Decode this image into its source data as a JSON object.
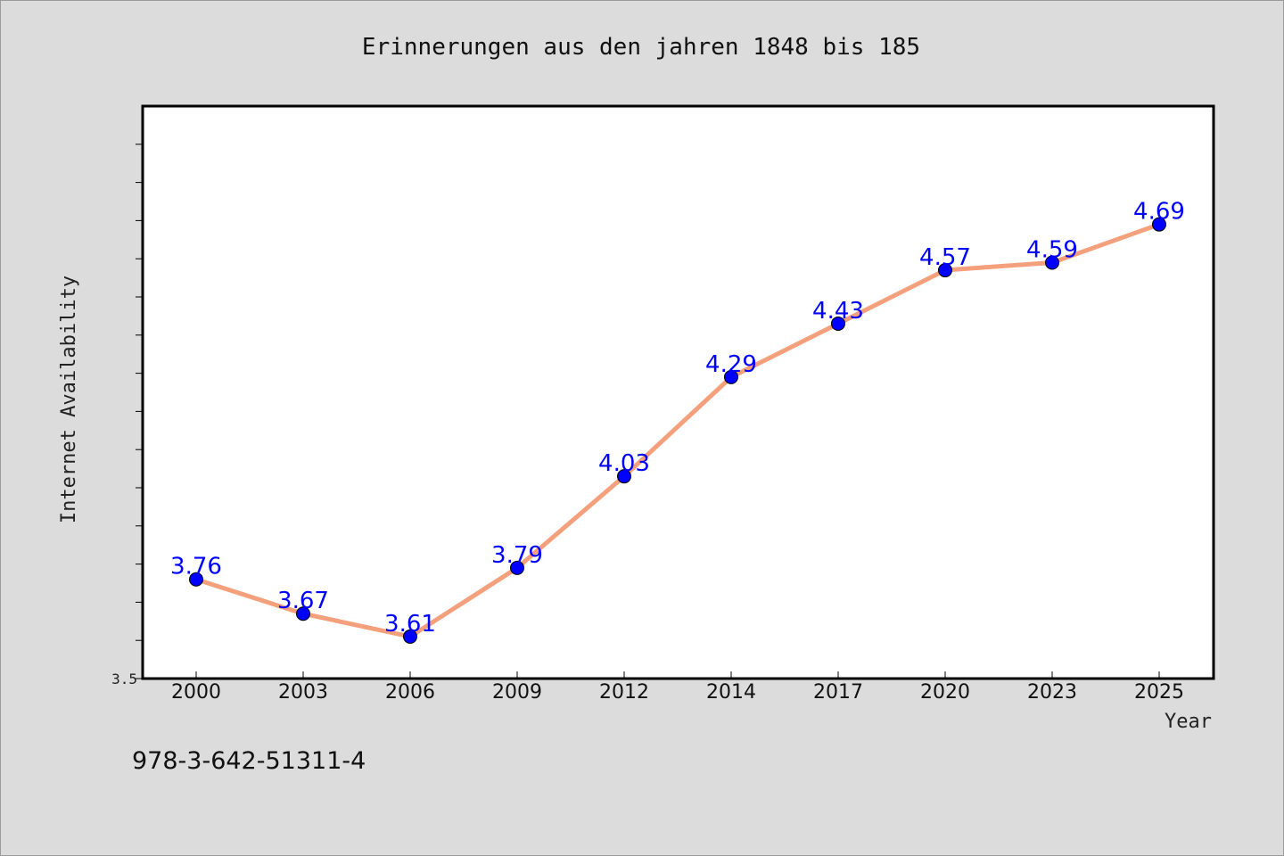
{
  "chart_data": {
    "type": "line",
    "title": "Erinnerungen aus den jahren 1848 bis 185",
    "xlabel": "Year",
    "ylabel": "Internet Availability",
    "categories": [
      "2000",
      "2003",
      "2006",
      "2009",
      "2012",
      "2014",
      "2017",
      "2020",
      "2023",
      "2025"
    ],
    "series": [
      {
        "values": [
          3.76,
          3.67,
          3.61,
          3.79,
          4.03,
          4.29,
          4.43,
          4.57,
          4.59,
          4.69
        ],
        "labels": [
          "3.76",
          "3.67",
          "3.61",
          "3.79",
          "4.03",
          "4.29",
          "4.43",
          "4.57",
          "4.59",
          "4.69"
        ],
        "line_color": "#f4a07c",
        "marker_color": "#0000ff"
      }
    ],
    "ylim": [
      3.5,
      5.0
    ],
    "y_tick_labels": [
      "3.5"
    ],
    "grid": false,
    "legend": "none",
    "footer_text": "978-3-642-51311-4",
    "colors": {
      "background": "#dcdcdc",
      "plot_background": "#ffffff",
      "data_label": "#0000ff"
    }
  }
}
